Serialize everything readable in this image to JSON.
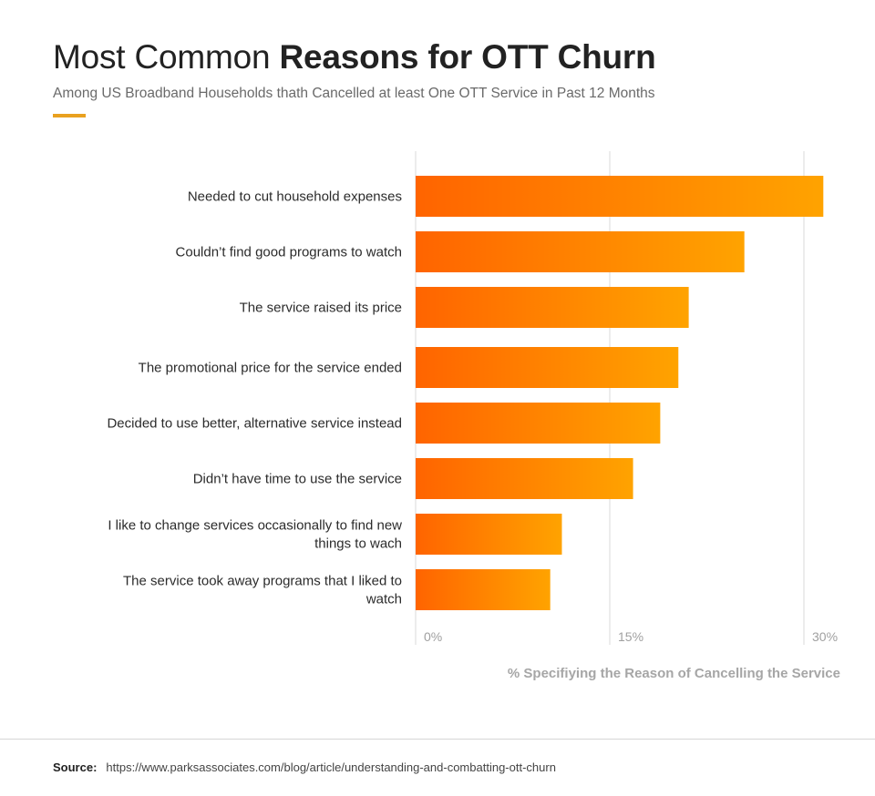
{
  "header": {
    "title_light": "Most Common ",
    "title_bold": "Reasons for OTT Churn",
    "subtitle": "Among US Broadband Households thath Cancelled at least One OTT Service in Past 12 Months",
    "accent_color": "#e9a11f"
  },
  "colors": {
    "bar_gradient_start": "#ff6400",
    "bar_gradient_end": "#ffa300",
    "gridline": "#d9d9d9"
  },
  "chart_data": {
    "type": "bar",
    "orientation": "horizontal",
    "title": "Most Common Reasons for OTT Churn",
    "subtitle": "Among US Broadband Households thath Cancelled at least One OTT Service in Past 12 Months",
    "categories": [
      [
        "Needed to cut household expenses"
      ],
      [
        "Couldn’t find good programs to watch"
      ],
      [
        "The service raised its price"
      ],
      [
        "The promotional price for the service ended"
      ],
      [
        "Decided to use better, alternative service instead"
      ],
      [
        "Didn’t have time to use the service"
      ],
      [
        "I like to change services occasionally to find new",
        "things to wach"
      ],
      [
        "The service took away programs that I liked to",
        "watch"
      ]
    ],
    "values": [
      31.5,
      25.4,
      21.1,
      20.3,
      18.9,
      16.8,
      11.3,
      10.4
    ],
    "unit": "%",
    "xlabel": "% Specifiying the Reason of Cancelling the Service",
    "ylabel": "",
    "xlim": [
      0,
      30
    ],
    "xticks": [
      0,
      15,
      30
    ],
    "xtick_labels": [
      "0%",
      "15%",
      "30%"
    ],
    "grid": true,
    "legend": "none"
  },
  "footer": {
    "source_label": "Source:",
    "source_url": "https://www.parksassociates.com/blog/article/understanding-and-combatting-ott-churn"
  }
}
